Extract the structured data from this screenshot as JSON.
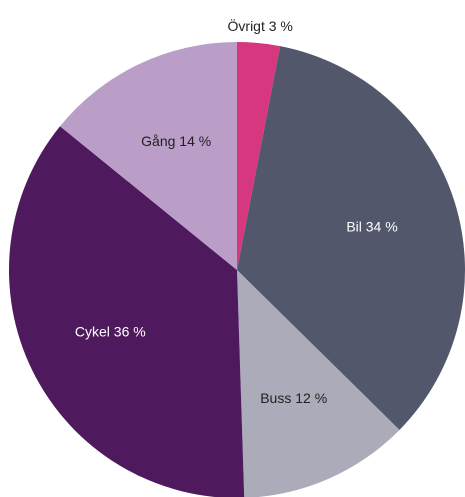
{
  "chart_data": {
    "type": "pie",
    "start_angle_deg": 0,
    "direction": "clockwise",
    "slices": [
      {
        "name": "Övrigt",
        "value": 3,
        "label": "Övrigt 3 %",
        "color": "#D6377F",
        "label_color": "#222222",
        "label_placement": "outside"
      },
      {
        "name": "Bil",
        "value": 34,
        "label": "Bil 34 %",
        "color": "#53576B",
        "label_color": "#ffffff",
        "label_placement": "inside"
      },
      {
        "name": "Buss",
        "value": 12,
        "label": "Buss 12 %",
        "color": "#ABABB9",
        "label_color": "#222222",
        "label_placement": "inside"
      },
      {
        "name": "Cykel",
        "value": 36,
        "label": "Cykel 36 %",
        "color": "#4E1A5D",
        "label_color": "#ffffff",
        "label_placement": "inside"
      },
      {
        "name": "Gång",
        "value": 14,
        "label": "Gång 14 %",
        "color": "#BA9EC8",
        "label_color": "#222222",
        "label_placement": "inside"
      }
    ]
  }
}
